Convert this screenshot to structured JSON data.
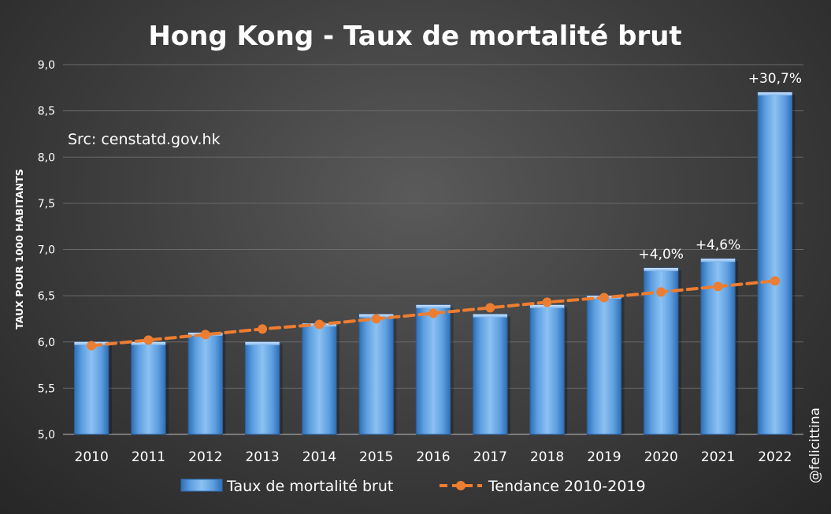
{
  "chart_data": {
    "type": "bar",
    "title": "Hong Kong - Taux de mortalité brut",
    "source_note": "Src: censtatd.gov.hk",
    "watermark": "@felicittina",
    "ylabel": "TAUX POUR 1000 HABITANTS",
    "xlabel": "",
    "ylim": [
      5.0,
      9.0
    ],
    "yticks": [
      "5,0",
      "5,5",
      "6,0",
      "6,5",
      "7,0",
      "7,5",
      "8,0",
      "8,5",
      "9,0"
    ],
    "categories": [
      "2010",
      "2011",
      "2012",
      "2013",
      "2014",
      "2015",
      "2016",
      "2017",
      "2018",
      "2019",
      "2020",
      "2021",
      "2022"
    ],
    "series": [
      {
        "name": "Taux de mortalité brut",
        "kind": "bar",
        "color": "#5b9bd5",
        "values": [
          6.0,
          6.0,
          6.1,
          6.0,
          6.2,
          6.3,
          6.4,
          6.3,
          6.4,
          6.5,
          6.8,
          6.9,
          8.7
        ]
      },
      {
        "name": "Tendance 2010-2019",
        "kind": "line",
        "style": "dashed",
        "color": "#ed7d31",
        "values": [
          5.96,
          6.02,
          6.08,
          6.14,
          6.19,
          6.25,
          6.31,
          6.37,
          6.43,
          6.48,
          6.54,
          6.6,
          6.66
        ]
      }
    ],
    "annotations": [
      {
        "category": "2020",
        "text": "+4,0%"
      },
      {
        "category": "2021",
        "text": "+4,6%"
      },
      {
        "category": "2022",
        "text": "+30,7%"
      }
    ],
    "grid": true,
    "legend_position": "bottom",
    "colors": {
      "text": "#ffffff",
      "gridline": "#6a6a6a",
      "bar": "#5b9bd5",
      "trend": "#ed7d31"
    }
  }
}
